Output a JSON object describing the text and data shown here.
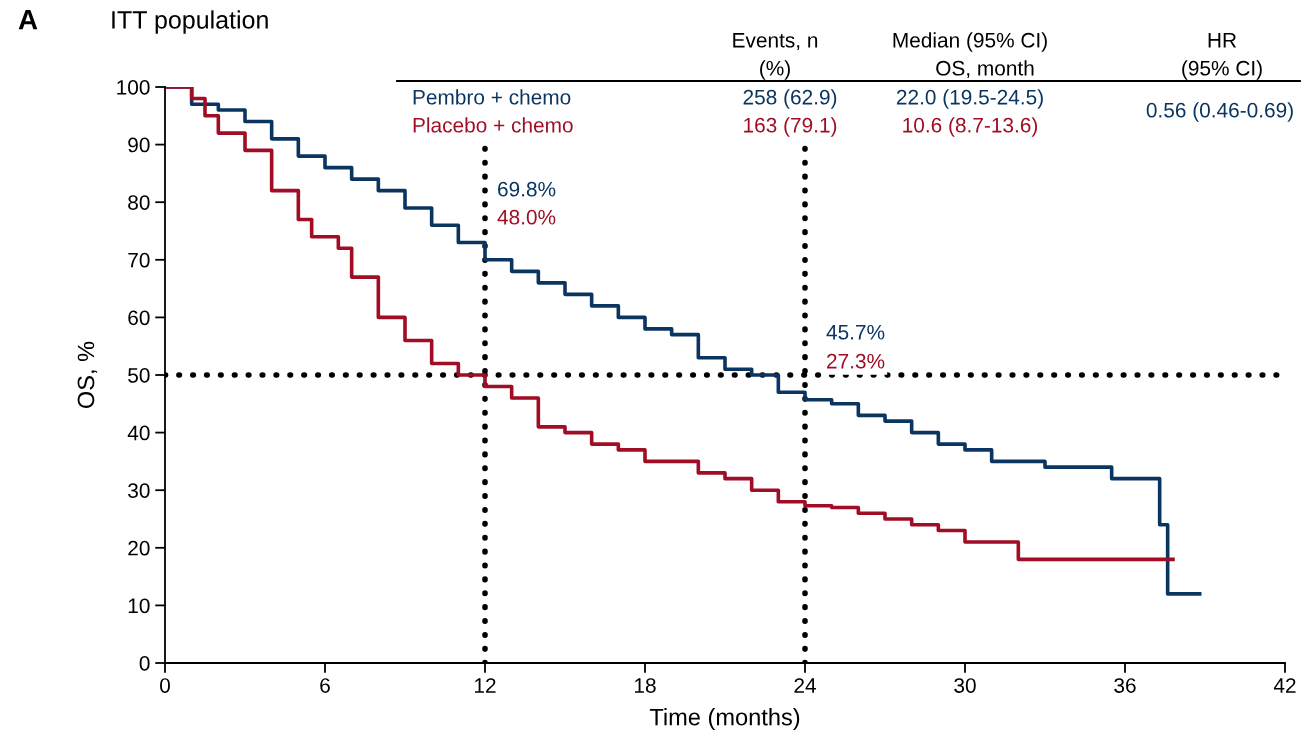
{
  "chart_data": {
    "type": "step",
    "title": "ITT population",
    "xlabel": "Time (months)",
    "ylabel": "OS, %",
    "xlim": [
      0,
      42
    ],
    "xticks": [
      0,
      6,
      12,
      18,
      24,
      30,
      36,
      42
    ],
    "ylim": [
      0,
      100
    ],
    "yticks": [
      0,
      10,
      20,
      30,
      40,
      50,
      60,
      70,
      80,
      90,
      100
    ],
    "grid": false,
    "legend": false,
    "marker": "none",
    "line_style": "solid",
    "series": [
      {
        "name": "Pembro + chemo",
        "color": "#0b3561",
        "x": [
          0,
          1,
          2,
          3,
          4,
          5,
          6,
          7,
          8,
          9,
          10,
          11,
          12,
          13,
          14,
          15,
          16,
          17,
          18,
          19,
          20,
          21,
          22,
          23,
          24,
          25,
          26,
          27,
          28,
          29,
          30,
          31,
          32,
          33,
          34,
          35,
          35.5,
          37.3,
          37.5,
          37.6,
          38.8
        ],
        "values": [
          100,
          97,
          96,
          94,
          91,
          88,
          86,
          84,
          82,
          79,
          76,
          73,
          70,
          68,
          66,
          64,
          62,
          60,
          58,
          57,
          53,
          51,
          50,
          47,
          45.7,
          45,
          43,
          42,
          40,
          38,
          37,
          35,
          35,
          34,
          34,
          34,
          32,
          24,
          24,
          12,
          12
        ]
      },
      {
        "name": "Placebo + chemo",
        "color": "#a00d24",
        "x": [
          0,
          1,
          1.5,
          2,
          3,
          4,
          5,
          5.5,
          6.5,
          7,
          8,
          9,
          10,
          11,
          12,
          13,
          14,
          15,
          16,
          17,
          18,
          19,
          20,
          21,
          22,
          23,
          24,
          25,
          26,
          27,
          28,
          29,
          30,
          31,
          32,
          37.8
        ],
        "values": [
          100,
          98,
          95,
          92,
          89,
          82,
          77,
          74,
          72,
          67,
          60,
          56,
          52,
          50,
          48,
          46,
          41,
          40,
          38,
          37,
          35,
          35,
          33,
          32,
          30,
          28,
          27.3,
          27,
          26,
          25,
          24,
          23,
          21,
          21,
          18,
          18
        ]
      }
    ],
    "ref_lines": [
      {
        "axis": "x",
        "value": 12,
        "color": "#000000",
        "line_style": "dotted"
      },
      {
        "axis": "x",
        "value": 24,
        "color": "#000000",
        "line_style": "dotted"
      },
      {
        "axis": "y",
        "value": 50,
        "color": "#000000",
        "line_style": "dotted"
      }
    ],
    "annotations": [
      "A",
      "Events, n",
      "(%)",
      "Median (95% CI)",
      "OS, month",
      "HR",
      "(95% CI)",
      "258 (62.9)",
      "163 (79.1)",
      "22.0 (19.5-24.5)",
      "10.6 (8.7-13.6)",
      "0.56 (0.46-0.69)",
      "69.8%",
      "48.0%",
      "45.7%",
      "27.3%"
    ]
  }
}
